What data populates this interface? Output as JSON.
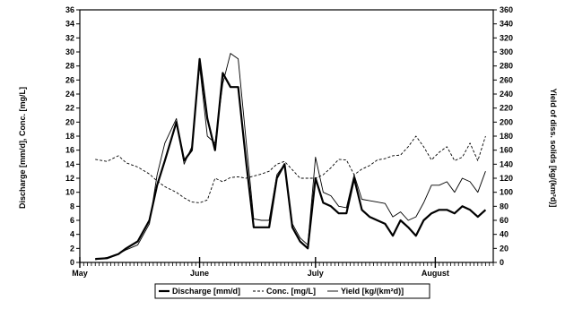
{
  "chart_data": {
    "type": "line",
    "xlabel_months": [
      "May",
      "June",
      "July",
      "August"
    ],
    "y_left_label": "Discharge [mm/d], Conc. [mg/L]",
    "y_right_label": "Yield of diss. solids [kg/(km²d)]",
    "y_left_lim": [
      0,
      36
    ],
    "y_left_ticks": [
      0,
      2,
      4,
      6,
      8,
      10,
      12,
      14,
      16,
      18,
      20,
      22,
      24,
      26,
      28,
      30,
      32,
      34,
      36
    ],
    "y_right_lim": [
      0,
      360
    ],
    "y_right_ticks": [
      0,
      20,
      40,
      60,
      80,
      100,
      120,
      140,
      160,
      180,
      200,
      220,
      240,
      260,
      280,
      300,
      320,
      340,
      360
    ],
    "x_start": "May 1",
    "x": [
      "May 5",
      "May 8",
      "May 11",
      "May 13",
      "May 16",
      "May 19",
      "May 21",
      "May 23",
      "May 26",
      "May 28",
      "May 30",
      "June 1",
      "June 3",
      "June 5",
      "June 7",
      "June 9",
      "June 11",
      "June 13",
      "June 15",
      "June 17",
      "June 19",
      "June 21",
      "June 23",
      "June 25",
      "June 27",
      "June 29",
      "July 1",
      "July 3",
      "July 5",
      "July 7",
      "July 9",
      "July 11",
      "July 13",
      "July 15",
      "July 17",
      "July 19",
      "July 21",
      "July 23",
      "July 25",
      "July 27",
      "July 29",
      "July 31",
      "August 2",
      "August 4",
      "August 6",
      "August 8",
      "August 10",
      "August 12",
      "August 14"
    ],
    "series": [
      {
        "name": "Discharge [mm/d]",
        "axis": "left",
        "values": [
          0.5,
          0.6,
          1.2,
          2,
          3,
          6,
          11,
          14.5,
          20,
          14.5,
          16,
          29,
          20.5,
          16,
          27,
          25,
          25,
          14.5,
          5,
          5,
          5,
          12,
          14,
          5,
          3,
          2,
          12,
          8.5,
          8,
          7,
          7,
          12,
          7.5,
          6.5,
          6,
          5.5,
          3.8,
          6,
          5,
          3.8,
          6,
          7,
          7.5,
          7.5,
          7,
          8,
          7.5,
          6.5,
          7.5
        ]
      },
      {
        "name": "Conc. [mg/L]",
        "axis": "left",
        "values": [
          14.7,
          14.4,
          15.2,
          14.2,
          13.6,
          12.6,
          11.6,
          10.8,
          10,
          9.2,
          8.6,
          8.5,
          8.9,
          12,
          11.5,
          12.1,
          12.2,
          12,
          12.3,
          12.6,
          13,
          14,
          14.4,
          13.2,
          12,
          12,
          12,
          12.5,
          13.5,
          14.7,
          14.6,
          12.5,
          13.3,
          13.8,
          14.6,
          14.8,
          15.2,
          15.3,
          16.5,
          18,
          16.5,
          14.6,
          15.7,
          16.5,
          14.5,
          15,
          17,
          14.5,
          18
        ]
      },
      {
        "name": "Yield [kg/(km²d)]",
        "axis": "right",
        "values": [
          4,
          7,
          12,
          18,
          25,
          55,
          125,
          170,
          205,
          140,
          165,
          280,
          180,
          170,
          255,
          298,
          290,
          175,
          62,
          60,
          60,
          125,
          140,
          55,
          35,
          25,
          150,
          100,
          95,
          80,
          78,
          125,
          90,
          88,
          86,
          84,
          65,
          72,
          60,
          65,
          85,
          110,
          110,
          115,
          100,
          120,
          115,
          100,
          130
        ]
      }
    ],
    "legend_position": "bottom",
    "grid": false
  }
}
